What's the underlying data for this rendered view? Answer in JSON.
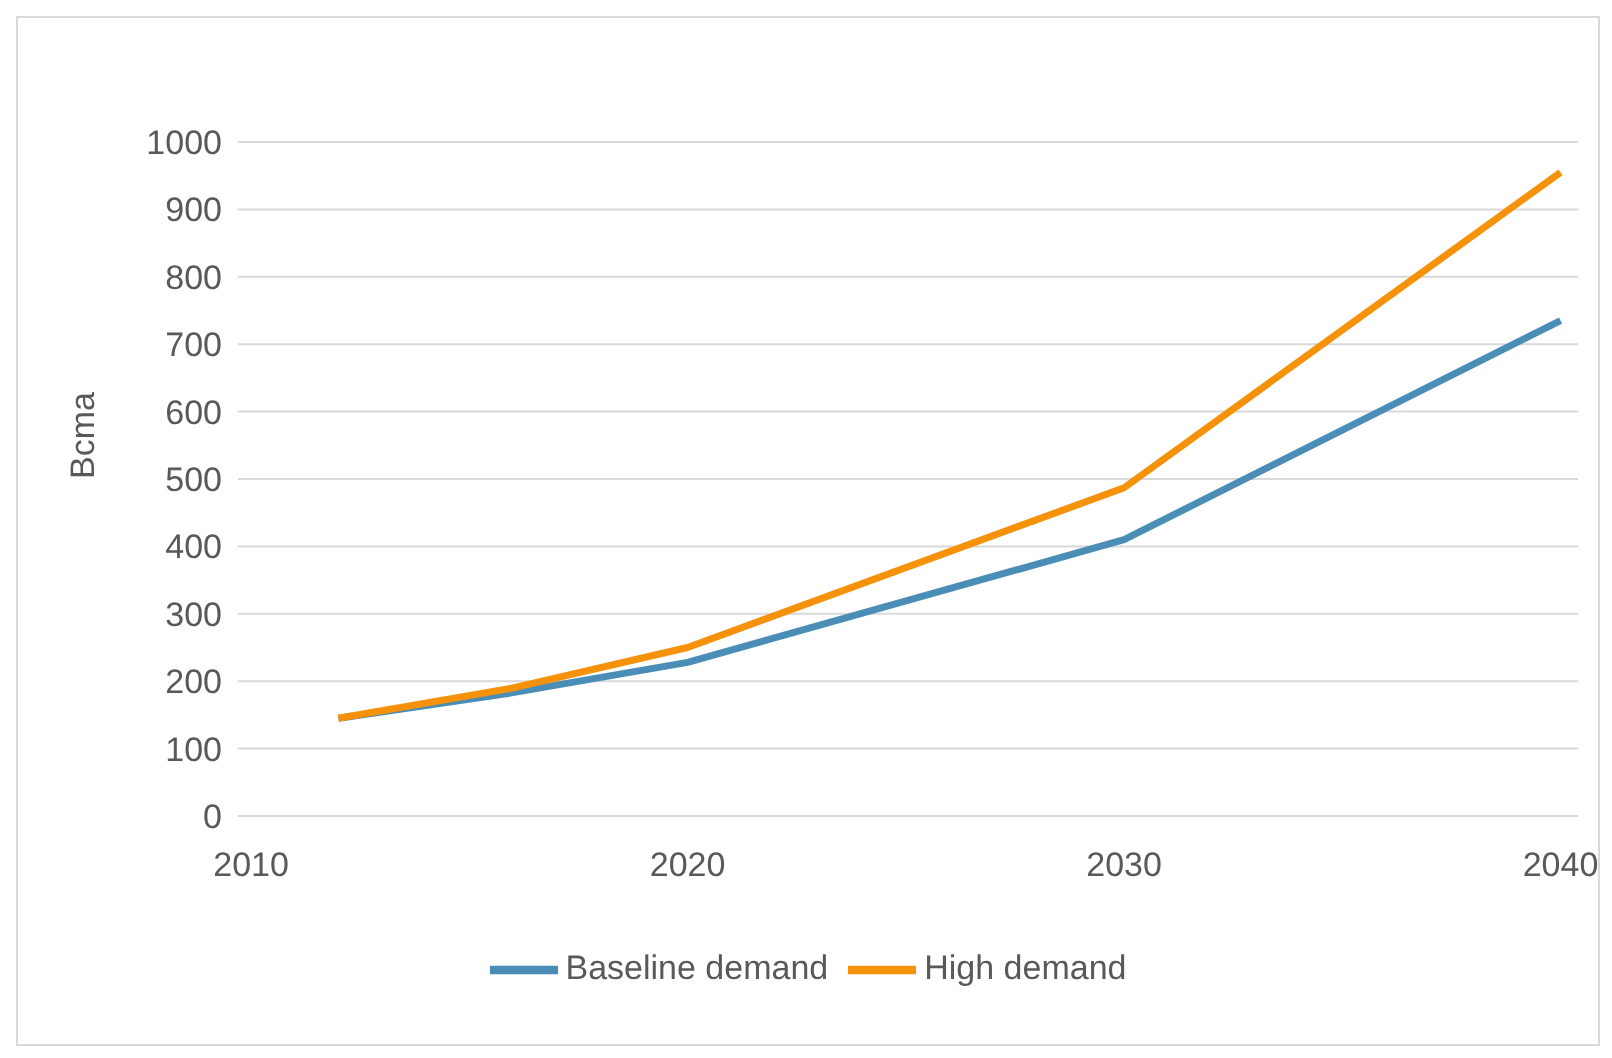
{
  "chart_data": {
    "type": "line",
    "ylabel": "Bcma",
    "x": [
      2012,
      2016,
      2020,
      2030,
      2040
    ],
    "series": [
      {
        "name": "Baseline demand",
        "color": "#4a8db7",
        "values": [
          145,
          183,
          228,
          410,
          735
        ]
      },
      {
        "name": "High demand",
        "color": "#f5920a",
        "values": [
          145,
          190,
          250,
          487,
          955
        ]
      }
    ],
    "xlim": [
      2009.7,
      2040.4
    ],
    "xticks": [
      2010,
      2020,
      2030,
      2040
    ],
    "ylim": [
      0,
      1000
    ],
    "yticks": [
      0,
      100,
      200,
      300,
      400,
      500,
      600,
      700,
      800,
      900,
      1000
    ],
    "grid": "y",
    "legend": "bottom",
    "marker": "none",
    "line_style": "solid"
  }
}
